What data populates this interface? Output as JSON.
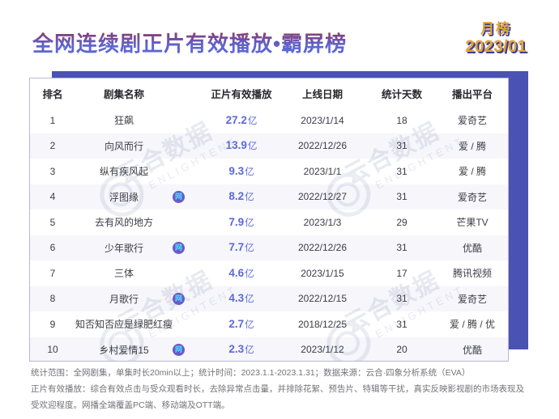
{
  "header": {
    "title": "全网连续剧正片有效播放•霸屏榜",
    "badge_type": "月榜",
    "badge_date": "2023/01"
  },
  "table": {
    "columns": [
      "排名",
      "剧集名称",
      "正片有效播放",
      "上线日期",
      "统计天数",
      "播出平台"
    ],
    "unit": "亿",
    "web_badge_glyph": "网",
    "rows": [
      {
        "rank": "1",
        "name": "狂飙",
        "web_badge": false,
        "plays": "27.2",
        "date": "2023/1/14",
        "days": "18",
        "platform": "爱奇艺"
      },
      {
        "rank": "2",
        "name": "向风而行",
        "web_badge": false,
        "plays": "13.9",
        "date": "2022/12/26",
        "days": "31",
        "platform": "爱 / 腾"
      },
      {
        "rank": "3",
        "name": "纵有疾风起",
        "web_badge": false,
        "plays": "9.3",
        "date": "2023/1/1",
        "days": "31",
        "platform": "爱 / 腾"
      },
      {
        "rank": "4",
        "name": "浮图缘",
        "web_badge": true,
        "plays": "8.2",
        "date": "2022/12/27",
        "days": "31",
        "platform": "爱奇艺"
      },
      {
        "rank": "5",
        "name": "去有风的地方",
        "web_badge": false,
        "plays": "7.9",
        "date": "2023/1/3",
        "days": "29",
        "platform": "芒果TV"
      },
      {
        "rank": "6",
        "name": "少年歌行",
        "web_badge": true,
        "plays": "7.7",
        "date": "2022/12/26",
        "days": "31",
        "platform": "优酷"
      },
      {
        "rank": "7",
        "name": "三体",
        "web_badge": false,
        "plays": "4.6",
        "date": "2023/1/15",
        "days": "17",
        "platform": "腾讯视频"
      },
      {
        "rank": "8",
        "name": "月歌行",
        "web_badge": true,
        "plays": "4.3",
        "date": "2022/12/15",
        "days": "31",
        "platform": "爱奇艺"
      },
      {
        "rank": "9",
        "name": "知否知否应是绿肥红瘦",
        "web_badge": false,
        "plays": "2.7",
        "date": "2018/12/25",
        "days": "31",
        "platform": "爱 / 腾 / 优"
      },
      {
        "rank": "10",
        "name": "乡村爱情15",
        "web_badge": true,
        "plays": "2.3",
        "date": "2023/1/12",
        "days": "20",
        "platform": "优酷"
      }
    ]
  },
  "watermark": {
    "line1": "云合数据",
    "line2": "ENLIGHTENT"
  },
  "footer": {
    "line1": "统计范围：全网剧集，单集时长20min以上；统计时间：2023.1.1-2023.1.31；数据来源：云合·四象分析系统（EVA）",
    "line2": "正片有效播放：综合有效点击与受众观看时长，去除异常点击量，并排除花絮、预告片、特辑等干扰，真实反映影视剧的市场表现及受欢迎程度。网播全端覆盖PC端、移动端及OTT端。"
  },
  "colors": {
    "title_gradient_top": "#9e3740",
    "title_gradient_bottom": "#5d66d3",
    "badge_gold": "#e2a33d",
    "badge_shadow": "#3d3f90",
    "accent_blue": "#4a52b3",
    "value_blue": "#5c69d6",
    "web_badge_bg": "#6a58cc",
    "web_badge_glyph_color": "#4fe0f2",
    "row_alt": "#f4f5fa"
  },
  "chart_data": {
    "type": "table",
    "title": "全网连续剧正片有效播放•霸屏榜",
    "period": "月榜 2023/01",
    "columns": [
      "排名",
      "剧集名称",
      "正片有效播放(亿)",
      "上线日期",
      "统计天数",
      "播出平台"
    ],
    "rows": [
      [
        1,
        "狂飙",
        27.2,
        "2023/1/14",
        18,
        "爱奇艺"
      ],
      [
        2,
        "向风而行",
        13.9,
        "2022/12/26",
        31,
        "爱 / 腾"
      ],
      [
        3,
        "纵有疾风起",
        9.3,
        "2023/1/1",
        31,
        "爱 / 腾"
      ],
      [
        4,
        "浮图缘",
        8.2,
        "2022/12/27",
        31,
        "爱奇艺"
      ],
      [
        5,
        "去有风的地方",
        7.9,
        "2023/1/3",
        29,
        "芒果TV"
      ],
      [
        6,
        "少年歌行",
        7.7,
        "2022/12/26",
        31,
        "优酷"
      ],
      [
        7,
        "三体",
        4.6,
        "2023/1/15",
        17,
        "腾讯视频"
      ],
      [
        8,
        "月歌行",
        4.3,
        "2022/12/15",
        31,
        "爱奇艺"
      ],
      [
        9,
        "知否知否应是绿肥红瘦",
        2.7,
        "2018/12/25",
        31,
        "爱 / 腾 / 优"
      ],
      [
        10,
        "乡村爱情15",
        2.3,
        "2023/1/12",
        20,
        "优酷"
      ]
    ],
    "web_drama_marked_rows": [
      4,
      6,
      8,
      10
    ]
  }
}
